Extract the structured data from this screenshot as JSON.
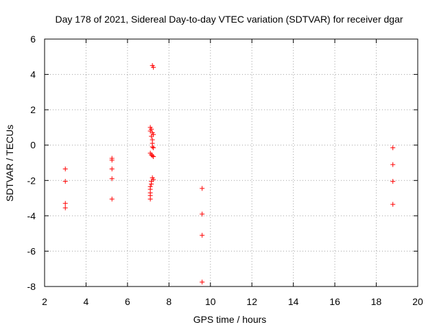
{
  "chart_data": {
    "type": "scatter",
    "title": "Day 178 of 2021, Sidereal Day-to-day VTEC variation (SDTVAR) for receiver dgar",
    "xlabel": "GPS time / hours",
    "ylabel": "SDTVAR / TECUs",
    "xlim": [
      2,
      20
    ],
    "ylim": [
      -8,
      6
    ],
    "xticks": [
      2,
      4,
      6,
      8,
      10,
      12,
      14,
      16,
      18,
      20
    ],
    "yticks": [
      -8,
      -6,
      -4,
      -2,
      0,
      2,
      4,
      6
    ],
    "grid": true,
    "marker": "plus",
    "color": "#ff0000",
    "series": [
      {
        "name": "SDTVAR",
        "points": [
          [
            3.0,
            -1.35
          ],
          [
            3.0,
            -2.05
          ],
          [
            3.0,
            -3.3
          ],
          [
            3.0,
            -3.55
          ],
          [
            5.25,
            -0.75
          ],
          [
            5.25,
            -0.85
          ],
          [
            5.25,
            -1.35
          ],
          [
            5.25,
            -1.9
          ],
          [
            5.25,
            -3.05
          ],
          [
            7.1,
            1.0
          ],
          [
            7.15,
            0.9
          ],
          [
            7.1,
            0.8
          ],
          [
            7.2,
            0.7
          ],
          [
            7.25,
            0.6
          ],
          [
            7.15,
            0.5
          ],
          [
            7.2,
            0.3
          ],
          [
            7.2,
            0.1
          ],
          [
            7.2,
            -0.1
          ],
          [
            7.25,
            -0.15
          ],
          [
            7.1,
            -0.45
          ],
          [
            7.15,
            -0.55
          ],
          [
            7.2,
            -0.6
          ],
          [
            7.25,
            -0.65
          ],
          [
            7.25,
            4.4
          ],
          [
            7.2,
            4.5
          ],
          [
            7.2,
            -1.85
          ],
          [
            7.25,
            -1.95
          ],
          [
            7.15,
            -2.05
          ],
          [
            7.15,
            -2.2
          ],
          [
            7.1,
            -2.35
          ],
          [
            7.1,
            -2.5
          ],
          [
            7.1,
            -2.7
          ],
          [
            7.1,
            -2.85
          ],
          [
            7.1,
            -3.05
          ],
          [
            9.6,
            -2.45
          ],
          [
            9.6,
            -3.9
          ],
          [
            9.6,
            -5.1
          ],
          [
            9.6,
            -7.75
          ],
          [
            18.8,
            -0.15
          ],
          [
            18.8,
            -1.1
          ],
          [
            18.8,
            -2.05
          ],
          [
            18.8,
            -3.35
          ]
        ]
      }
    ]
  }
}
